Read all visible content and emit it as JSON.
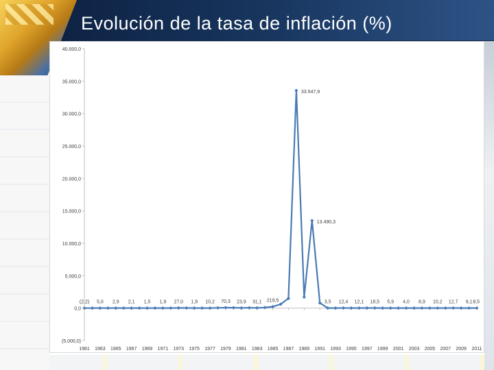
{
  "slide": {
    "title": "Evolución de la tasa de inflación (%)"
  },
  "chart_data": {
    "type": "line",
    "title": "",
    "xlabel": "",
    "ylabel": "",
    "ylim": [
      -5000,
      40000
    ],
    "yticks": [
      40000,
      35000,
      30000,
      25000,
      20000,
      15000,
      10000,
      5000,
      0,
      -5000
    ],
    "ytick_labels": [
      "40.000,0",
      "35.000,0",
      "30.000,0",
      "25.000,0",
      "20.000,0",
      "15.000,0",
      "10.000,0",
      "5.000,0",
      "0,0",
      "(5.000,0)"
    ],
    "categories": [
      "1961",
      "1962",
      "1963",
      "1964",
      "1965",
      "1966",
      "1967",
      "1968",
      "1969",
      "1970",
      "1971",
      "1972",
      "1973",
      "1974",
      "1975",
      "1976",
      "1977",
      "1978",
      "1979",
      "1980",
      "1981",
      "1982",
      "1983",
      "1984",
      "1985",
      "1986",
      "1987",
      "1988",
      "1989",
      "1990",
      "1991",
      "1992",
      "1993",
      "1994",
      "1995",
      "1996",
      "1997",
      "1998",
      "1999",
      "2000",
      "2001",
      "2002",
      "2003",
      "2004",
      "2005",
      "2006",
      "2007",
      "2008",
      "2009",
      "2010",
      "2011"
    ],
    "xtick_labels": [
      "1961",
      "1963",
      "1965",
      "1967",
      "1969",
      "1971",
      "1973",
      "1975",
      "1977",
      "1979",
      "1981",
      "1983",
      "1985",
      "1987",
      "1989",
      "1991",
      "1993",
      "1995",
      "1997",
      "1999",
      "2001",
      "2003",
      "2005",
      "2007",
      "2009",
      "2011"
    ],
    "series": [
      {
        "name": "Tasa de inflación",
        "color": "#4a7ab5",
        "values": [
          -2.2,
          2,
          5.0,
          3,
          2.9,
          2,
          2.1,
          2,
          1.5,
          2,
          1.9,
          10,
          27.0,
          20,
          1.9,
          5,
          10.2,
          40,
          70.3,
          60,
          23.9,
          50,
          31.1,
          80,
          219.5,
          600,
          1500,
          33547.9,
          1700,
          13490.3,
          800,
          3.5,
          10,
          12.4,
          11,
          12.1,
          15,
          18.5,
          10,
          5.9,
          5,
          4.0,
          6,
          8.9,
          9,
          10.2,
          11,
          12.7,
          10,
          9.1,
          8.5
        ]
      }
    ],
    "data_labels": [
      {
        "category": "1961",
        "text": "(2,2)"
      },
      {
        "category": "1963",
        "text": "5,0"
      },
      {
        "category": "1965",
        "text": "2,9"
      },
      {
        "category": "1967",
        "text": "2,1"
      },
      {
        "category": "1969",
        "text": "1,5"
      },
      {
        "category": "1971",
        "text": "1,9"
      },
      {
        "category": "1973",
        "text": "27,0"
      },
      {
        "category": "1975",
        "text": "1,9"
      },
      {
        "category": "1977",
        "text": "10,2"
      },
      {
        "category": "1979",
        "text": "70,3"
      },
      {
        "category": "1981",
        "text": "23,9"
      },
      {
        "category": "1983",
        "text": "31,1"
      },
      {
        "category": "1985",
        "text": "219,5"
      },
      {
        "category": "1988",
        "text": "33.547,9"
      },
      {
        "category": "1990",
        "text": "13.490,3"
      },
      {
        "category": "1992",
        "text": "3,5"
      },
      {
        "category": "1994",
        "text": "12,4"
      },
      {
        "category": "1996",
        "text": "12,1"
      },
      {
        "category": "1998",
        "text": "18,5"
      },
      {
        "category": "2000",
        "text": "5,9"
      },
      {
        "category": "2002",
        "text": "4,0"
      },
      {
        "category": "2004",
        "text": "8,9"
      },
      {
        "category": "2006",
        "text": "10,2"
      },
      {
        "category": "2008",
        "text": "12,7"
      },
      {
        "category": "2010",
        "text": "9,1"
      },
      {
        "category": "2011",
        "text": "8,5"
      }
    ]
  }
}
